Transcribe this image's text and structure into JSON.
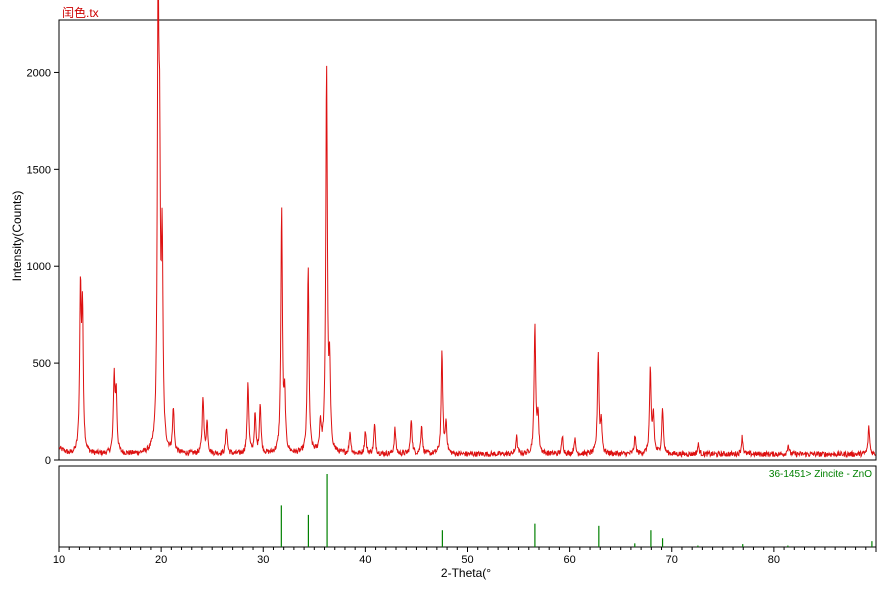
{
  "chart_data": [
    {
      "type": "line",
      "title": "闰色.tx",
      "xlabel": "",
      "ylabel": "Intensity(Counts)",
      "xlim": [
        10,
        90
      ],
      "ylim": [
        0,
        2250
      ],
      "yticks": [
        0,
        500,
        1000,
        1500,
        2000
      ],
      "colors": {
        "line": "#dd1111",
        "title": "#cc0000"
      },
      "baseline": 30,
      "peaks": [
        {
          "x": 12.1,
          "y": 820
        },
        {
          "x": 12.3,
          "y": 700
        },
        {
          "x": 15.4,
          "y": 390
        },
        {
          "x": 15.6,
          "y": 300
        },
        {
          "x": 19.7,
          "y": 2180
        },
        {
          "x": 19.85,
          "y": 1280
        },
        {
          "x": 20.1,
          "y": 1020
        },
        {
          "x": 21.2,
          "y": 230
        },
        {
          "x": 24.1,
          "y": 300
        },
        {
          "x": 24.5,
          "y": 160
        },
        {
          "x": 26.4,
          "y": 140
        },
        {
          "x": 28.5,
          "y": 370
        },
        {
          "x": 29.2,
          "y": 200
        },
        {
          "x": 29.7,
          "y": 260
        },
        {
          "x": 31.8,
          "y": 1250
        },
        {
          "x": 32.1,
          "y": 270
        },
        {
          "x": 34.4,
          "y": 970
        },
        {
          "x": 35.6,
          "y": 150
        },
        {
          "x": 36.2,
          "y": 1990
        },
        {
          "x": 36.5,
          "y": 400
        },
        {
          "x": 38.5,
          "y": 110
        },
        {
          "x": 40.0,
          "y": 120
        },
        {
          "x": 40.9,
          "y": 150
        },
        {
          "x": 42.9,
          "y": 130
        },
        {
          "x": 44.5,
          "y": 180
        },
        {
          "x": 45.5,
          "y": 150
        },
        {
          "x": 47.5,
          "y": 520
        },
        {
          "x": 47.9,
          "y": 160
        },
        {
          "x": 54.8,
          "y": 90
        },
        {
          "x": 56.6,
          "y": 670
        },
        {
          "x": 56.9,
          "y": 200
        },
        {
          "x": 59.3,
          "y": 90
        },
        {
          "x": 60.5,
          "y": 80
        },
        {
          "x": 62.8,
          "y": 520
        },
        {
          "x": 63.1,
          "y": 160
        },
        {
          "x": 66.4,
          "y": 90
        },
        {
          "x": 67.9,
          "y": 430
        },
        {
          "x": 68.2,
          "y": 200
        },
        {
          "x": 69.1,
          "y": 240
        },
        {
          "x": 72.6,
          "y": 50
        },
        {
          "x": 76.9,
          "y": 90
        },
        {
          "x": 81.4,
          "y": 50
        },
        {
          "x": 89.3,
          "y": 140
        }
      ]
    },
    {
      "type": "bar",
      "title": "36-1451> Zincite - ZnO",
      "xlabel": "2-Theta(°",
      "xlim": [
        10,
        90
      ],
      "xticks": [
        10,
        20,
        30,
        40,
        50,
        60,
        70,
        80
      ],
      "ylim": [
        0,
        100
      ],
      "colors": {
        "bars": "#008000",
        "label": "#008000"
      },
      "x": [
        31.77,
        34.42,
        36.25,
        47.54,
        56.6,
        62.86,
        66.38,
        67.96,
        69.1,
        72.56,
        76.95,
        81.37,
        89.6
      ],
      "values": [
        57,
        44,
        100,
        23,
        32,
        29,
        5,
        23,
        12,
        2,
        4,
        2,
        8
      ]
    }
  ]
}
